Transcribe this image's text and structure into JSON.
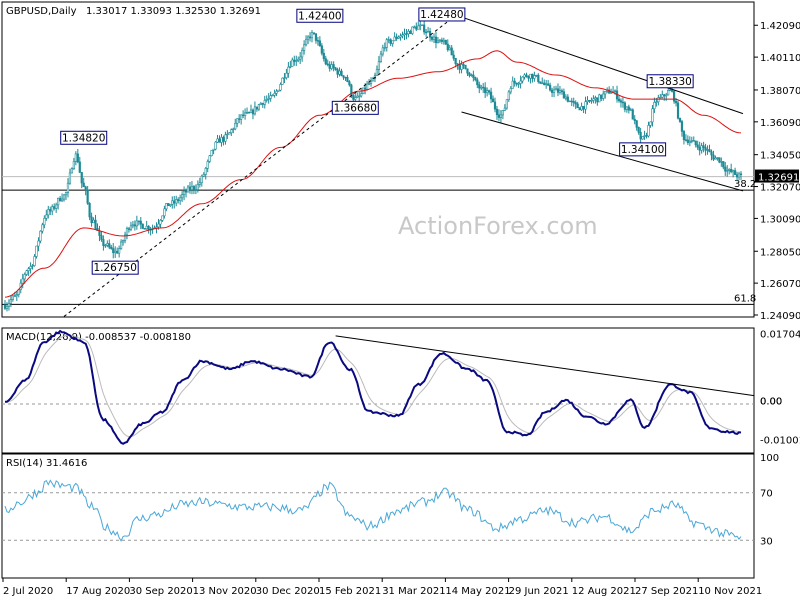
{
  "header": {
    "symbol": "GBPUSD,Daily",
    "ohlc": "1.33017 1.33093 1.32530 1.32691"
  },
  "watermark": "ActionForex.com",
  "colors": {
    "candle": "#1c8a96",
    "sma": "#dd1111",
    "macd": "#0a0a80",
    "signal": "#bbbbbb",
    "rsi": "#4aa8d8",
    "trendline": "#000000",
    "background": "#ffffff"
  },
  "chart_data": [
    {
      "type": "candlestick",
      "ylim": [
        1.2409,
        1.4341
      ],
      "price_ticks": [
        "1.42090",
        "1.40110",
        "1.38070",
        "1.36090",
        "1.34050",
        "1.32070",
        "1.30090",
        "1.28050",
        "1.26070",
        "1.24090"
      ],
      "current_price": "1.32691",
      "x_ticks": [
        "2 Jul 2020",
        "17 Aug 2020",
        "30 Sep 2020",
        "13 Nov 2020",
        "30 Dec 2020",
        "15 Feb 2021",
        "31 Mar 2021",
        "14 May 2021",
        "29 Jun 2021",
        "12 Aug 2021",
        "27 Sep 2021",
        "10 Nov 2021"
      ],
      "anchors": [
        {
          "i": 0,
          "p": 1.247
        },
        {
          "i": 5,
          "p": 1.252
        },
        {
          "i": 12,
          "p": 1.27
        },
        {
          "i": 22,
          "p": 1.305
        },
        {
          "i": 30,
          "p": 1.315
        },
        {
          "i": 36,
          "p": 1.34
        },
        {
          "i": 40,
          "p": 1.32
        },
        {
          "i": 44,
          "p": 1.3
        },
        {
          "i": 50,
          "p": 1.285
        },
        {
          "i": 56,
          "p": 1.28
        },
        {
          "i": 65,
          "p": 1.298
        },
        {
          "i": 75,
          "p": 1.295
        },
        {
          "i": 84,
          "p": 1.31
        },
        {
          "i": 96,
          "p": 1.32
        },
        {
          "i": 110,
          "p": 1.35
        },
        {
          "i": 122,
          "p": 1.365
        },
        {
          "i": 134,
          "p": 1.375
        },
        {
          "i": 148,
          "p": 1.4
        },
        {
          "i": 156,
          "p": 1.415
        },
        {
          "i": 165,
          "p": 1.395
        },
        {
          "i": 172,
          "p": 1.39
        },
        {
          "i": 178,
          "p": 1.375
        },
        {
          "i": 186,
          "p": 1.385
        },
        {
          "i": 194,
          "p": 1.41
        },
        {
          "i": 202,
          "p": 1.415
        },
        {
          "i": 210,
          "p": 1.42
        },
        {
          "i": 222,
          "p": 1.41
        },
        {
          "i": 232,
          "p": 1.395
        },
        {
          "i": 244,
          "p": 1.38
        },
        {
          "i": 252,
          "p": 1.365
        },
        {
          "i": 258,
          "p": 1.385
        },
        {
          "i": 266,
          "p": 1.39
        },
        {
          "i": 280,
          "p": 1.38
        },
        {
          "i": 292,
          "p": 1.37
        },
        {
          "i": 300,
          "p": 1.375
        },
        {
          "i": 308,
          "p": 1.38
        },
        {
          "i": 316,
          "p": 1.37
        },
        {
          "i": 324,
          "p": 1.35
        },
        {
          "i": 332,
          "p": 1.375
        },
        {
          "i": 338,
          "p": 1.38
        },
        {
          "i": 346,
          "p": 1.35
        },
        {
          "i": 354,
          "p": 1.345
        },
        {
          "i": 362,
          "p": 1.338
        },
        {
          "i": 368,
          "p": 1.33
        },
        {
          "i": 374,
          "p": 1.3269
        }
      ],
      "sma_anchors": [
        {
          "i": 0,
          "p": 1.252
        },
        {
          "i": 20,
          "p": 1.27
        },
        {
          "i": 40,
          "p": 1.295
        },
        {
          "i": 60,
          "p": 1.29
        },
        {
          "i": 80,
          "p": 1.295
        },
        {
          "i": 100,
          "p": 1.31
        },
        {
          "i": 120,
          "p": 1.325
        },
        {
          "i": 140,
          "p": 1.345
        },
        {
          "i": 160,
          "p": 1.365
        },
        {
          "i": 180,
          "p": 1.38
        },
        {
          "i": 200,
          "p": 1.388
        },
        {
          "i": 220,
          "p": 1.392
        },
        {
          "i": 240,
          "p": 1.4
        },
        {
          "i": 250,
          "p": 1.405
        },
        {
          "i": 260,
          "p": 1.398
        },
        {
          "i": 280,
          "p": 1.39
        },
        {
          "i": 300,
          "p": 1.382
        },
        {
          "i": 320,
          "p": 1.375
        },
        {
          "i": 340,
          "p": 1.375
        },
        {
          "i": 355,
          "p": 1.365
        },
        {
          "i": 374,
          "p": 1.354
        }
      ],
      "annotations": [
        {
          "text": "1.34820",
          "i": 40,
          "p": 1.3482
        },
        {
          "text": "1.26750",
          "i": 56,
          "p": 1.2675
        },
        {
          "text": "1.42400",
          "i": 160,
          "p": 1.424
        },
        {
          "text": "1.36680",
          "i": 178,
          "p": 1.3668
        },
        {
          "text": "1.42480",
          "i": 222,
          "p": 1.4248
        },
        {
          "text": "1.34100",
          "i": 324,
          "p": 1.341
        },
        {
          "text": "1.38330",
          "i": 338,
          "p": 1.3833
        }
      ],
      "horizontal_lines": [
        {
          "p": 1.3185,
          "label": "38.2"
        },
        {
          "p": 1.2475,
          "label": "61.8"
        }
      ],
      "trendlines": [
        {
          "from": {
            "i": 30,
            "p": 1.24
          },
          "to": {
            "i": 228,
            "p": 1.426
          },
          "style": "dashed"
        },
        {
          "from": {
            "i": 232,
            "p": 1.426
          },
          "to": {
            "i": 375,
            "p": 1.366
          },
          "style": "solid"
        },
        {
          "from": {
            "i": 232,
            "p": 1.367
          },
          "to": {
            "i": 375,
            "p": 1.318
          },
          "style": "solid"
        }
      ]
    },
    {
      "type": "line",
      "title": "MACD(12,26,9) -0.008537 -0.008180",
      "ylim": [
        -0.013,
        0.018
      ],
      "y_ticks": [
        "0.017047",
        "0.00",
        "0.00",
        "-0.010013"
      ],
      "macd_anchors": [
        {
          "i": 0,
          "v": -0.0005
        },
        {
          "i": 10,
          "v": 0.005
        },
        {
          "i": 20,
          "v": 0.015
        },
        {
          "i": 28,
          "v": 0.0175
        },
        {
          "i": 40,
          "v": 0.015
        },
        {
          "i": 50,
          "v": -0.005
        },
        {
          "i": 60,
          "v": -0.011
        },
        {
          "i": 70,
          "v": -0.006
        },
        {
          "i": 80,
          "v": -0.003
        },
        {
          "i": 90,
          "v": 0.005
        },
        {
          "i": 100,
          "v": 0.01
        },
        {
          "i": 115,
          "v": 0.008
        },
        {
          "i": 125,
          "v": 0.01
        },
        {
          "i": 140,
          "v": 0.008
        },
        {
          "i": 155,
          "v": 0.006
        },
        {
          "i": 165,
          "v": 0.015
        },
        {
          "i": 175,
          "v": 0.008
        },
        {
          "i": 185,
          "v": -0.003
        },
        {
          "i": 200,
          "v": -0.004
        },
        {
          "i": 210,
          "v": 0.004
        },
        {
          "i": 222,
          "v": 0.012
        },
        {
          "i": 235,
          "v": 0.008
        },
        {
          "i": 245,
          "v": 0.005
        },
        {
          "i": 255,
          "v": -0.008
        },
        {
          "i": 265,
          "v": -0.009
        },
        {
          "i": 275,
          "v": -0.003
        },
        {
          "i": 285,
          "v": 0.0
        },
        {
          "i": 295,
          "v": -0.004
        },
        {
          "i": 305,
          "v": -0.006
        },
        {
          "i": 318,
          "v": 0.0
        },
        {
          "i": 325,
          "v": -0.007
        },
        {
          "i": 338,
          "v": 0.004
        },
        {
          "i": 348,
          "v": 0.002
        },
        {
          "i": 358,
          "v": -0.007
        },
        {
          "i": 366,
          "v": -0.008
        },
        {
          "i": 374,
          "v": -0.0085
        }
      ],
      "trendline": {
        "from": {
          "i": 168,
          "v": 0.0165
        },
        "to": {
          "i": 375,
          "v": 0.0012
        }
      }
    },
    {
      "type": "line",
      "title": "RSI(14) 31.4616",
      "ylim": [
        0,
        100
      ],
      "y_ticks": [
        "100",
        "70",
        "30"
      ],
      "levels": [
        70,
        30
      ],
      "rsi_anchors": [
        {
          "i": 0,
          "v": 55
        },
        {
          "i": 8,
          "v": 62
        },
        {
          "i": 16,
          "v": 70
        },
        {
          "i": 22,
          "v": 79
        },
        {
          "i": 28,
          "v": 76
        },
        {
          "i": 36,
          "v": 74
        },
        {
          "i": 44,
          "v": 58
        },
        {
          "i": 52,
          "v": 40
        },
        {
          "i": 60,
          "v": 33
        },
        {
          "i": 68,
          "v": 48
        },
        {
          "i": 78,
          "v": 52
        },
        {
          "i": 90,
          "v": 60
        },
        {
          "i": 100,
          "v": 62
        },
        {
          "i": 110,
          "v": 60
        },
        {
          "i": 120,
          "v": 58
        },
        {
          "i": 135,
          "v": 58
        },
        {
          "i": 150,
          "v": 55
        },
        {
          "i": 165,
          "v": 75
        },
        {
          "i": 175,
          "v": 50
        },
        {
          "i": 185,
          "v": 42
        },
        {
          "i": 200,
          "v": 55
        },
        {
          "i": 212,
          "v": 62
        },
        {
          "i": 224,
          "v": 70
        },
        {
          "i": 236,
          "v": 55
        },
        {
          "i": 250,
          "v": 40
        },
        {
          "i": 262,
          "v": 48
        },
        {
          "i": 275,
          "v": 55
        },
        {
          "i": 290,
          "v": 45
        },
        {
          "i": 305,
          "v": 50
        },
        {
          "i": 318,
          "v": 38
        },
        {
          "i": 330,
          "v": 55
        },
        {
          "i": 340,
          "v": 60
        },
        {
          "i": 350,
          "v": 45
        },
        {
          "i": 358,
          "v": 40
        },
        {
          "i": 366,
          "v": 35
        },
        {
          "i": 374,
          "v": 31.46
        }
      ]
    }
  ]
}
